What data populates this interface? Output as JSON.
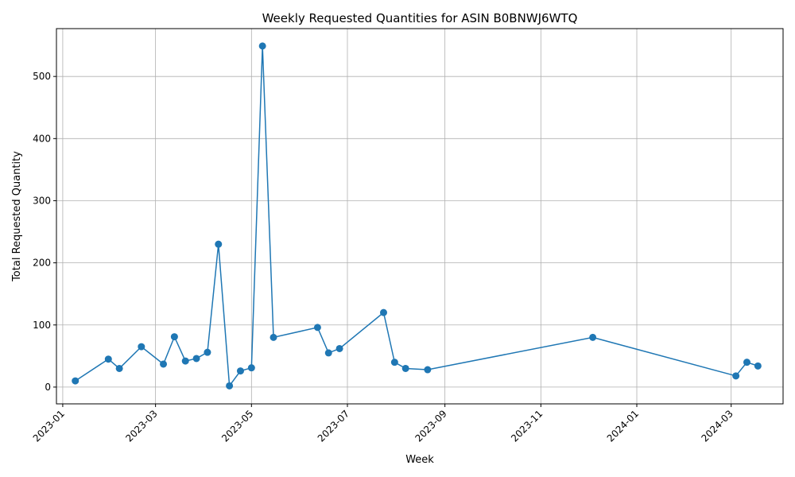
{
  "chart_data": {
    "type": "line",
    "title": "Weekly Requested Quantities for ASIN B0BNWJ6WTQ",
    "xlabel": "Week",
    "ylabel": "Total Requested Quantity",
    "grid": true,
    "x_range": [
      "2022-12-28",
      "2024-04-03"
    ],
    "ylim": [
      -27,
      577
    ],
    "x_ticks": [
      "2023-01",
      "2023-03",
      "2023-05",
      "2023-07",
      "2023-09",
      "2023-11",
      "2024-01",
      "2024-03"
    ],
    "y_ticks": [
      0,
      100,
      200,
      300,
      400,
      500
    ],
    "color": "#1f77b4",
    "series": [
      {
        "points": [
          {
            "x": "2023-01-09",
            "y": 10
          },
          {
            "x": "2023-01-30",
            "y": 45
          },
          {
            "x": "2023-02-06",
            "y": 30
          },
          {
            "x": "2023-02-20",
            "y": 65
          },
          {
            "x": "2023-03-06",
            "y": 37
          },
          {
            "x": "2023-03-13",
            "y": 81
          },
          {
            "x": "2023-03-20",
            "y": 42
          },
          {
            "x": "2023-03-27",
            "y": 46
          },
          {
            "x": "2023-04-03",
            "y": 56
          },
          {
            "x": "2023-04-10",
            "y": 230
          },
          {
            "x": "2023-04-17",
            "y": 2
          },
          {
            "x": "2023-04-24",
            "y": 26
          },
          {
            "x": "2023-05-01",
            "y": 31
          },
          {
            "x": "2023-05-08",
            "y": 549
          },
          {
            "x": "2023-05-15",
            "y": 80
          },
          {
            "x": "2023-06-12",
            "y": 96
          },
          {
            "x": "2023-06-19",
            "y": 55
          },
          {
            "x": "2023-06-26",
            "y": 62
          },
          {
            "x": "2023-07-24",
            "y": 120
          },
          {
            "x": "2023-07-31",
            "y": 40
          },
          {
            "x": "2023-08-07",
            "y": 30
          },
          {
            "x": "2023-08-21",
            "y": 28
          },
          {
            "x": "2023-12-04",
            "y": 80
          },
          {
            "x": "2024-03-04",
            "y": 18
          },
          {
            "x": "2024-03-11",
            "y": 40
          },
          {
            "x": "2024-03-18",
            "y": 34
          }
        ]
      }
    ]
  }
}
